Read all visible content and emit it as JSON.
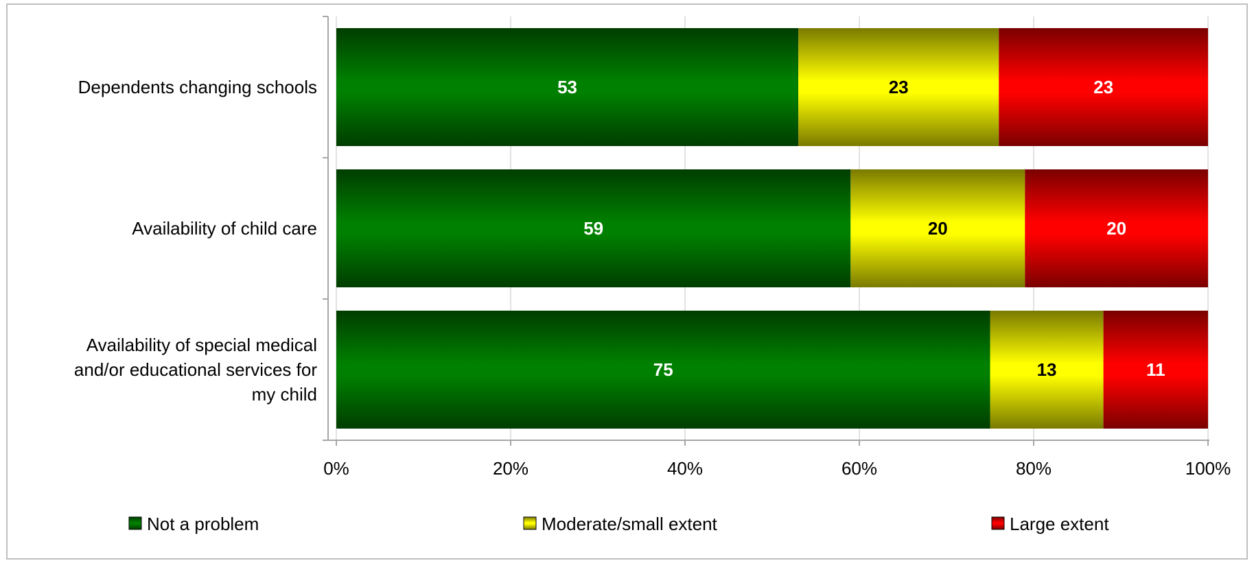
{
  "chart_data": {
    "type": "bar",
    "orientation": "horizontal",
    "stacked": true,
    "categories": [
      [
        "Dependents changing schools"
      ],
      [
        "Availability of child care"
      ],
      [
        "Availability of special medical",
        "and/or educational services for",
        "my child"
      ]
    ],
    "series": [
      {
        "name": "Not a problem",
        "values": [
          53,
          59,
          75
        ],
        "color": "#008000",
        "label_color": "#ffffff"
      },
      {
        "name": "Moderate/small extent",
        "values": [
          23,
          20,
          13
        ],
        "color": "#ffff00",
        "label_color": "#000000"
      },
      {
        "name": "Large extent",
        "values": [
          23,
          20,
          11
        ],
        "color": "#ff0000",
        "label_color": "#ffffff"
      }
    ],
    "xticks": [
      "0%",
      "20%",
      "40%",
      "60%",
      "80%",
      "100%"
    ],
    "xlim": [
      0,
      100
    ],
    "normalized_to_100": true,
    "grid": true,
    "legend_position": "bottom",
    "title": "",
    "xlabel": "",
    "ylabel": ""
  }
}
